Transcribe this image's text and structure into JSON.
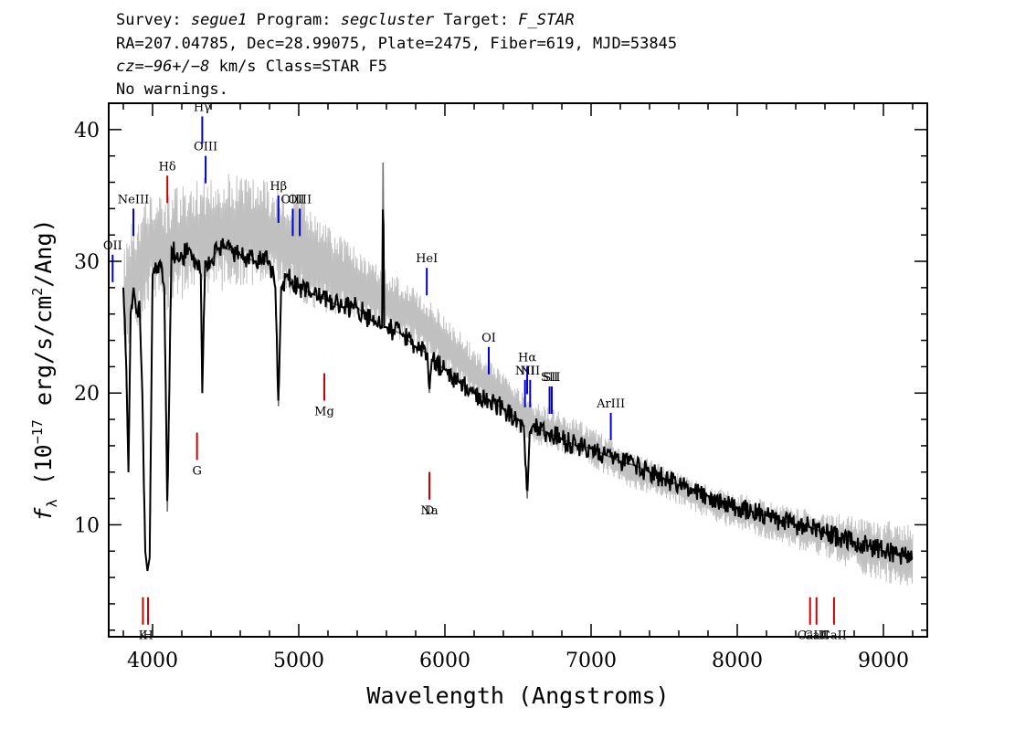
{
  "header": {
    "line1": {
      "survey_label": "Survey:",
      "survey": "segue1",
      "program_label": "Program:",
      "program": "segcluster",
      "target_label": "Target:",
      "target": "F_STAR"
    },
    "line2": "RA=207.04785, Dec=28.99075, Plate=2475, Fiber=619, MJD=53845",
    "line3": {
      "cz": "cz=−96+/−8",
      "rest": " km/s Class=STAR F5"
    },
    "line4": "No warnings."
  },
  "chart_data": {
    "type": "line",
    "title": "",
    "xlabel": "Wavelength (Angstroms)",
    "ylabel_parts": {
      "symbol": "f",
      "subscript": "λ",
      "prefix": " (10",
      "exp": "−17",
      "mid": " erg/s/cm",
      "exp2": "2",
      "suffix": "/Ang)"
    },
    "xlim": [
      3700,
      9300
    ],
    "ylim": [
      1.5,
      42
    ],
    "x_ticks": [
      4000,
      5000,
      6000,
      7000,
      8000,
      9000
    ],
    "y_ticks": [
      10,
      20,
      30,
      40
    ],
    "grid": false,
    "series": [
      {
        "style": "error-band",
        "color": "#c0c0c0",
        "x": [
          3800,
          3850,
          3900,
          4000,
          4100,
          4200,
          4400,
          4600,
          4800,
          5000,
          5200,
          5500,
          5800,
          6000,
          6200,
          6400,
          6600,
          6800,
          7000,
          7200,
          7500,
          7800,
          8000,
          8300,
          8600,
          8900,
          9200
        ],
        "y_low": [
          22,
          24,
          25,
          27,
          26,
          27,
          27.5,
          28,
          28,
          27,
          26,
          25,
          23.5,
          21.5,
          19.5,
          18,
          16,
          15.5,
          14.5,
          13,
          12,
          10.5,
          9.5,
          8.5,
          7.5,
          6,
          5
        ],
        "y_high": [
          31,
          33,
          34,
          36,
          35,
          36,
          36.5,
          37,
          36,
          35,
          33,
          30,
          28,
          26,
          23.5,
          21.5,
          19.5,
          18.5,
          17.5,
          16,
          14.5,
          13,
          12.5,
          11.5,
          11,
          10.5,
          10
        ]
      },
      {
        "style": "flux",
        "color": "#000000",
        "x": [
          3800,
          3820,
          3835,
          3850,
          3870,
          3890,
          3910,
          3930,
          3950,
          3965,
          3980,
          4000,
          4050,
          4080,
          4101,
          4130,
          4180,
          4250,
          4300,
          4330,
          4340,
          4360,
          4400,
          4450,
          4500,
          4600,
          4700,
          4800,
          4840,
          4861,
          4880,
          4920,
          5000,
          5100,
          5200,
          5300,
          5400,
          5500,
          5570,
          5577,
          5585,
          5600,
          5700,
          5800,
          5880,
          5893,
          5910,
          6000,
          6100,
          6200,
          6300,
          6400,
          6500,
          6540,
          6563,
          6580,
          6600,
          6700,
          6800,
          6900,
          7000,
          7100,
          7200,
          7300,
          7400,
          7500,
          7600,
          7700,
          7800,
          7900,
          8000,
          8100,
          8200,
          8300,
          8400,
          8500,
          8600,
          8700,
          8800,
          8900,
          9000,
          9100,
          9200
        ],
        "y": [
          28,
          22,
          14,
          26,
          28,
          26,
          27,
          20,
          8,
          6.5,
          7.5,
          29,
          30,
          28,
          11,
          31,
          30,
          31,
          30,
          29,
          20,
          30,
          30,
          31,
          31,
          30.5,
          30,
          30,
          28,
          19,
          28,
          29,
          28,
          27.5,
          27,
          26.5,
          26.5,
          25.5,
          25,
          37.5,
          25,
          25,
          24.5,
          23.5,
          23,
          20,
          22.5,
          21.8,
          20.8,
          20,
          19.5,
          18.8,
          18,
          17.5,
          12,
          17,
          17.5,
          17,
          16.5,
          16,
          15.8,
          15.3,
          14.8,
          14.5,
          14,
          13.5,
          13,
          12.7,
          12.2,
          11.8,
          11.3,
          11,
          10.7,
          10.3,
          10,
          9.8,
          9.4,
          9,
          8.7,
          8.4,
          8,
          7.7,
          7.4
        ]
      }
    ],
    "emission_lines": [
      {
        "label": "OII",
        "x": 3727,
        "y": 30.5,
        "color": "#0000cc"
      },
      {
        "label": "NeIII",
        "x": 3869,
        "y": 34,
        "color": "#0000cc"
      },
      {
        "label": "Hδ",
        "x": 4101,
        "y": 36.5,
        "color": "#cc0000"
      },
      {
        "label": "Hγ",
        "x": 4340,
        "y": 41,
        "color": "#0000cc"
      },
      {
        "label": "OIII",
        "x": 4363,
        "y": 38,
        "color": "#0000cc"
      },
      {
        "label": "Hβ",
        "x": 4861,
        "y": 35,
        "color": "#0000cc"
      },
      {
        "label": "OIII",
        "x": 4959,
        "y": 34,
        "color": "#0000cc"
      },
      {
        "label": "OIII",
        "x": 5007,
        "y": 34,
        "color": "#0000cc"
      },
      {
        "label": "HeI",
        "x": 5876,
        "y": 29.5,
        "color": "#0000cc"
      },
      {
        "label": "OI",
        "x": 6300,
        "y": 23.5,
        "color": "#0000cc"
      },
      {
        "label": "NII",
        "x": 6548,
        "y": 21,
        "color": "#0000cc"
      },
      {
        "label": "Hα",
        "x": 6563,
        "y": 22,
        "color": "#0000cc"
      },
      {
        "label": "NII",
        "x": 6583,
        "y": 21,
        "color": "#0000cc"
      },
      {
        "label": "SII",
        "x": 6716,
        "y": 20.5,
        "color": "#0000cc"
      },
      {
        "label": "SII",
        "x": 6731,
        "y": 20.5,
        "color": "#0000cc"
      },
      {
        "label": "ArIII",
        "x": 7135,
        "y": 18.5,
        "color": "#0000cc"
      }
    ],
    "absorption_lines": [
      {
        "label": "K",
        "x": 3934,
        "y": 4.5,
        "color": "#cc0000"
      },
      {
        "label": "H",
        "x": 3969,
        "y": 4.5,
        "color": "#cc0000"
      },
      {
        "label": "G",
        "x": 4304,
        "y": 17,
        "color": "#cc0000"
      },
      {
        "label": "Mg",
        "x": 5175,
        "y": 21.5,
        "color": "#cc0000"
      },
      {
        "label": "Na",
        "x": 5894,
        "y": 14,
        "color": "#cc0000"
      },
      {
        "label": "D",
        "x": 5894,
        "y": 14,
        "color": "#cc0000"
      },
      {
        "label": "CaII",
        "x": 8498,
        "y": 4.5,
        "color": "#cc0000"
      },
      {
        "label": "CaII",
        "x": 8542,
        "y": 4.5,
        "color": "#cc0000"
      },
      {
        "label": "CaII",
        "x": 8662,
        "y": 4.5,
        "color": "#cc0000"
      }
    ]
  }
}
